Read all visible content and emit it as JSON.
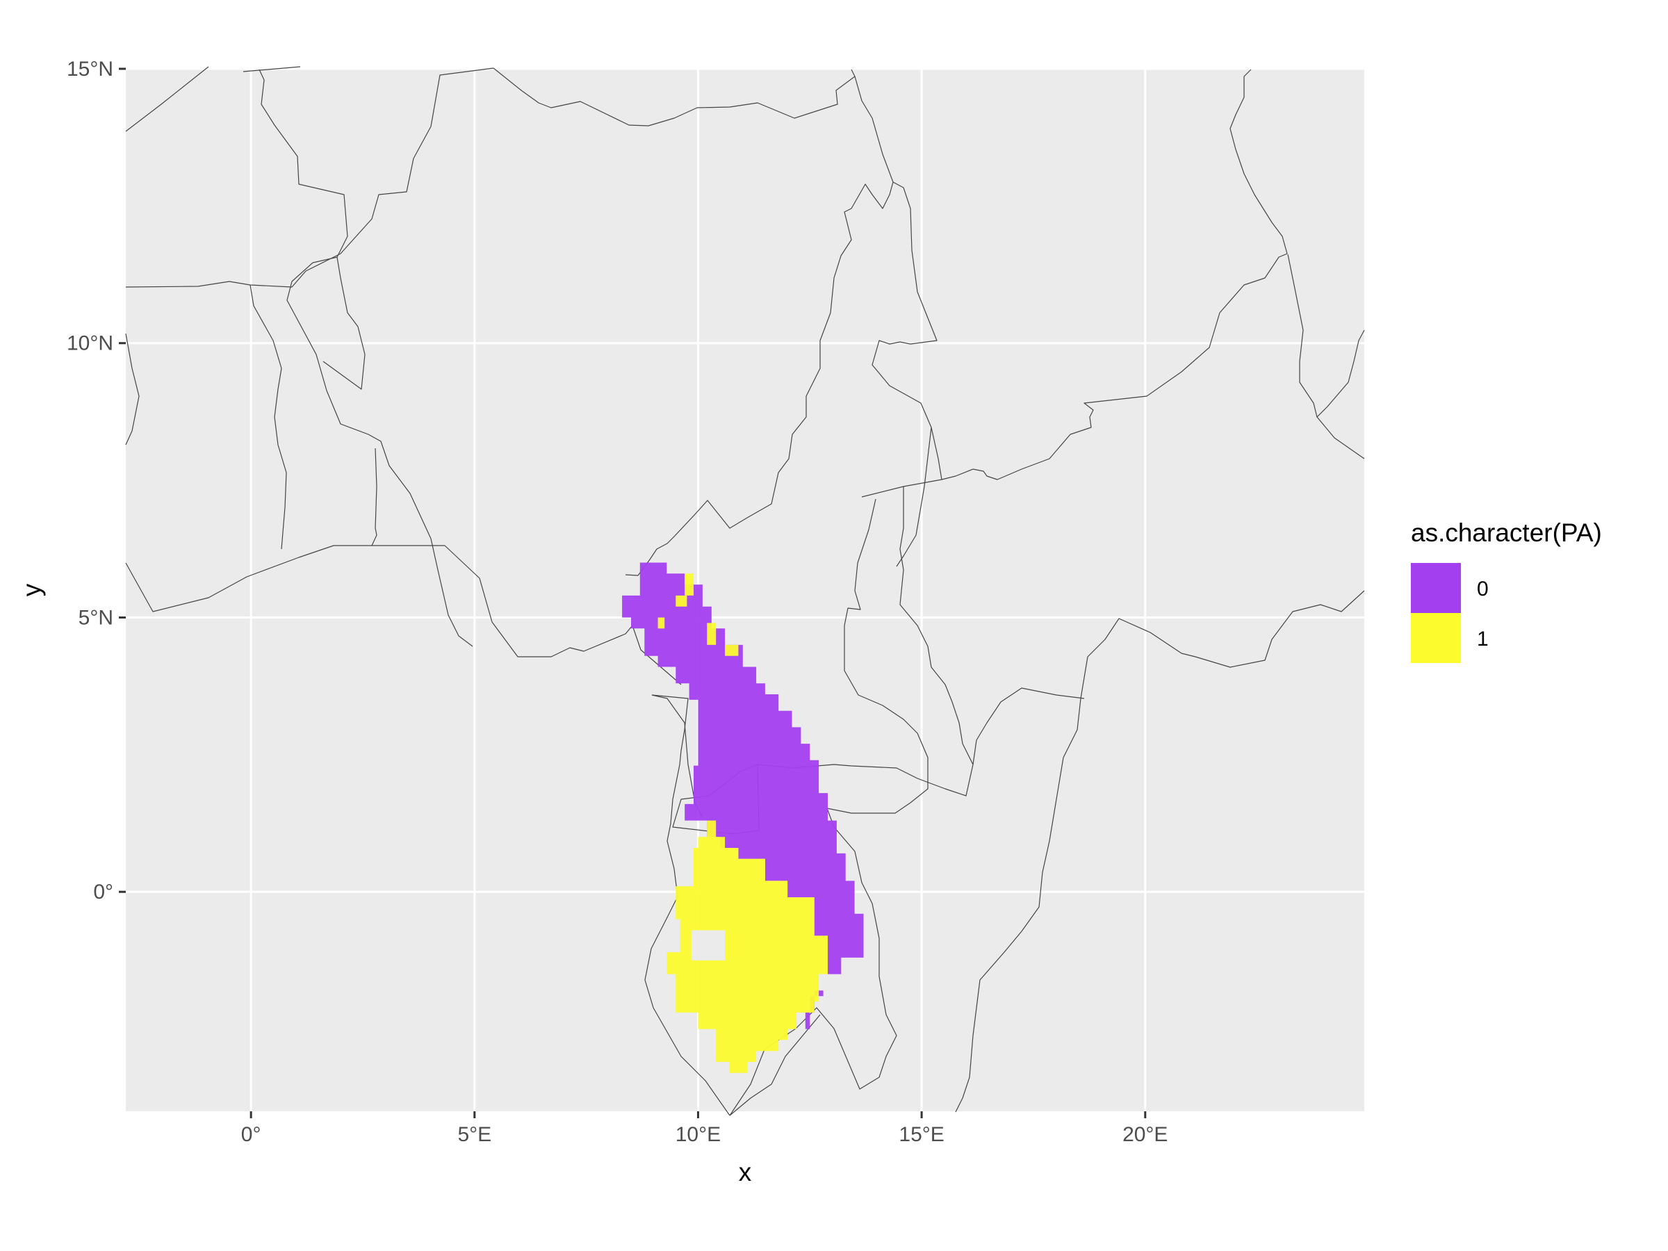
{
  "chart_data": {
    "type": "heatmap",
    "subtype": "presence-absence raster on map of Central Africa",
    "xlabel": "x",
    "ylabel": "y",
    "x_range": [
      -2.8,
      24.9
    ],
    "y_range": [
      -4.0,
      15.0
    ],
    "x_ticks": [
      {
        "value": 0,
        "label": "0°"
      },
      {
        "value": 5,
        "label": "5°E"
      },
      {
        "value": 10,
        "label": "10°E"
      },
      {
        "value": 15,
        "label": "15°E"
      },
      {
        "value": 20,
        "label": "20°E"
      }
    ],
    "y_ticks": [
      {
        "value": 0,
        "label": "0°"
      },
      {
        "value": 5,
        "label": "5°N"
      },
      {
        "value": 10,
        "label": "10°N"
      },
      {
        "value": 15,
        "label": "15°N"
      }
    ],
    "grid": true,
    "legend": {
      "title": "as.character(PA)",
      "placement": "right",
      "entries": [
        {
          "label": "0",
          "color": "#a43ff0"
        },
        {
          "label": "1",
          "color": "#fbfb2e"
        }
      ]
    },
    "colors": {
      "panel": "#ebebeb",
      "gridline": "#ffffff",
      "border": "#444444",
      "absence": "#a43ff0",
      "presence": "#fbfb2e"
    },
    "regions": [
      {
        "class": "0",
        "polygon": [
          [
            8.3,
            5.4
          ],
          [
            8.7,
            5.4
          ],
          [
            8.7,
            6.0
          ],
          [
            9.3,
            6.0
          ],
          [
            9.3,
            5.8
          ],
          [
            9.7,
            5.8
          ],
          [
            9.7,
            5.6
          ],
          [
            10.1,
            5.6
          ],
          [
            10.1,
            5.2
          ],
          [
            10.3,
            5.2
          ],
          [
            10.3,
            4.8
          ],
          [
            10.6,
            4.8
          ],
          [
            10.6,
            4.5
          ],
          [
            11.0,
            4.5
          ],
          [
            11.0,
            4.1
          ],
          [
            11.3,
            4.1
          ],
          [
            11.3,
            3.8
          ],
          [
            11.5,
            3.8
          ],
          [
            11.5,
            3.6
          ],
          [
            11.8,
            3.6
          ],
          [
            11.8,
            3.3
          ],
          [
            12.1,
            3.3
          ],
          [
            12.1,
            3.0
          ],
          [
            12.3,
            3.0
          ],
          [
            12.3,
            2.7
          ],
          [
            12.5,
            2.7
          ],
          [
            12.5,
            2.4
          ],
          [
            12.7,
            2.4
          ],
          [
            12.7,
            1.8
          ],
          [
            12.9,
            1.8
          ],
          [
            12.9,
            1.3
          ],
          [
            13.1,
            1.3
          ],
          [
            13.1,
            0.7
          ],
          [
            13.3,
            0.7
          ],
          [
            13.3,
            0.2
          ],
          [
            13.5,
            0.2
          ],
          [
            13.5,
            -0.4
          ],
          [
            13.7,
            -0.4
          ],
          [
            13.7,
            -1.2
          ],
          [
            13.2,
            -1.2
          ],
          [
            13.2,
            -1.5
          ],
          [
            12.8,
            -1.5
          ],
          [
            12.8,
            -1.8
          ],
          [
            12.6,
            -1.8
          ],
          [
            12.6,
            -2.2
          ],
          [
            12.4,
            -2.2
          ],
          [
            12.4,
            -2.5
          ],
          [
            12.5,
            -2.5
          ],
          [
            12.5,
            -1.9
          ],
          [
            12.8,
            -1.9
          ],
          [
            12.8,
            -1.5
          ],
          [
            12.9,
            -1.5
          ],
          [
            12.9,
            -0.8
          ],
          [
            12.6,
            -0.8
          ],
          [
            12.6,
            -0.1
          ],
          [
            12.0,
            -0.1
          ],
          [
            12.0,
            0.2
          ],
          [
            11.5,
            0.2
          ],
          [
            11.5,
            0.6
          ],
          [
            10.9,
            0.6
          ],
          [
            10.9,
            0.8
          ],
          [
            10.5,
            0.8
          ],
          [
            10.5,
            1.0
          ],
          [
            10.2,
            1.0
          ],
          [
            10.2,
            1.3
          ],
          [
            9.7,
            1.3
          ],
          [
            9.7,
            1.6
          ],
          [
            9.9,
            1.6
          ],
          [
            9.9,
            2.3
          ],
          [
            10.0,
            2.3
          ],
          [
            10.0,
            3.5
          ],
          [
            9.8,
            3.5
          ],
          [
            9.8,
            3.8
          ],
          [
            9.5,
            3.8
          ],
          [
            9.5,
            4.1
          ],
          [
            9.1,
            4.1
          ],
          [
            9.1,
            4.3
          ],
          [
            8.8,
            4.3
          ],
          [
            8.8,
            4.8
          ],
          [
            8.5,
            4.8
          ],
          [
            8.5,
            5.0
          ],
          [
            8.3,
            5.0
          ]
        ]
      },
      {
        "class": "1",
        "polygon": [
          [
            10.0,
            1.0
          ],
          [
            10.2,
            1.0
          ],
          [
            10.2,
            1.3
          ],
          [
            10.4,
            1.3
          ],
          [
            10.4,
            1.0
          ],
          [
            10.6,
            1.0
          ],
          [
            10.6,
            0.8
          ],
          [
            10.9,
            0.8
          ],
          [
            10.9,
            0.6
          ],
          [
            11.5,
            0.6
          ],
          [
            11.5,
            0.2
          ],
          [
            12.0,
            0.2
          ],
          [
            12.0,
            -0.1
          ],
          [
            12.6,
            -0.1
          ],
          [
            12.6,
            -0.8
          ],
          [
            12.9,
            -0.8
          ],
          [
            12.9,
            -1.5
          ],
          [
            12.7,
            -1.5
          ],
          [
            12.7,
            -2.0
          ],
          [
            12.6,
            -2.0
          ],
          [
            12.6,
            -2.2
          ],
          [
            12.2,
            -2.2
          ],
          [
            12.2,
            -2.5
          ],
          [
            12.0,
            -2.5
          ],
          [
            12.0,
            -2.7
          ],
          [
            11.8,
            -2.7
          ],
          [
            11.8,
            -2.9
          ],
          [
            11.3,
            -2.9
          ],
          [
            11.3,
            -3.1
          ],
          [
            11.1,
            -3.1
          ],
          [
            11.1,
            -3.3
          ],
          [
            10.7,
            -3.3
          ],
          [
            10.7,
            -3.1
          ],
          [
            10.4,
            -3.1
          ],
          [
            10.4,
            -2.5
          ],
          [
            10.0,
            -2.5
          ],
          [
            10.0,
            -2.2
          ],
          [
            9.5,
            -2.2
          ],
          [
            9.5,
            -1.5
          ],
          [
            9.3,
            -1.5
          ],
          [
            9.3,
            -1.1
          ],
          [
            9.6,
            -1.1
          ],
          [
            9.6,
            -0.5
          ],
          [
            9.5,
            -0.5
          ],
          [
            9.5,
            0.1
          ],
          [
            9.9,
            0.1
          ],
          [
            9.9,
            0.8
          ],
          [
            10.0,
            0.8
          ]
        ]
      },
      {
        "class": "1",
        "polygon": [
          [
            9.1,
            4.8
          ],
          [
            9.1,
            5.0
          ],
          [
            9.25,
            5.0
          ],
          [
            9.25,
            4.8
          ]
        ]
      },
      {
        "class": "1",
        "polygon": [
          [
            9.5,
            5.2
          ],
          [
            9.5,
            5.4
          ],
          [
            9.75,
            5.4
          ],
          [
            9.75,
            5.2
          ]
        ]
      },
      {
        "class": "1",
        "polygon": [
          [
            9.7,
            5.4
          ],
          [
            9.7,
            5.8
          ],
          [
            9.9,
            5.8
          ],
          [
            9.9,
            5.4
          ]
        ]
      },
      {
        "class": "1",
        "polygon": [
          [
            10.2,
            4.5
          ],
          [
            10.2,
            4.9
          ],
          [
            10.4,
            4.9
          ],
          [
            10.4,
            4.5
          ]
        ]
      },
      {
        "class": "1",
        "polygon": [
          [
            10.6,
            4.3
          ],
          [
            10.6,
            4.5
          ],
          [
            10.9,
            4.5
          ],
          [
            10.9,
            4.3
          ]
        ]
      }
    ]
  }
}
